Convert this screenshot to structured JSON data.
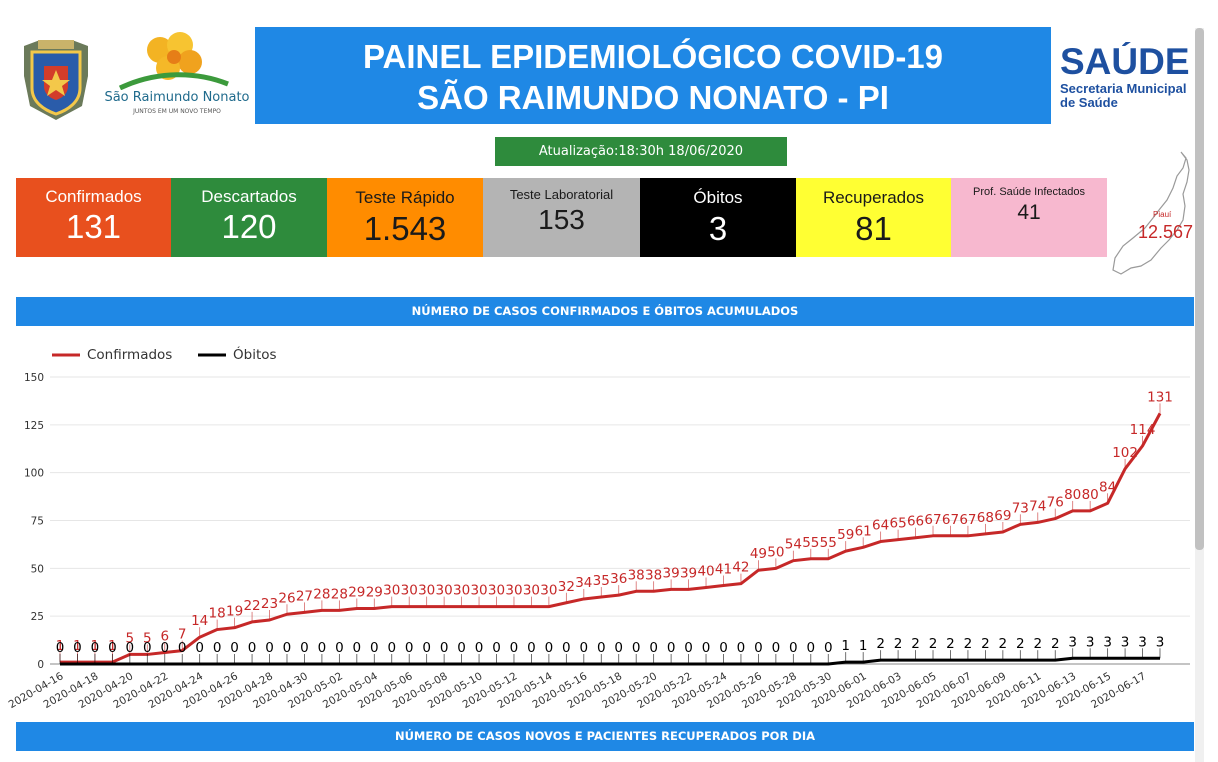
{
  "header": {
    "title_line1": "PAINEL EPIDEMIOLÓGICO COVID-19",
    "title_line2": "SÃO RAIMUNDO NONATO - PI",
    "city_logo_name": "São Raimundo Nonato",
    "city_logo_tagline": "JUNTOS EM UM NOVO TEMPO",
    "saude_title": "SAÚDE",
    "saude_sub1": "Secretaria Municipal",
    "saude_sub2": "de Saúde"
  },
  "update": "Atualização:18:30h 18/06/2020",
  "cards": [
    {
      "label": "Confirmados",
      "value": "131",
      "bg": "#e8501e",
      "fg": "#ffffff"
    },
    {
      "label": "Descartados",
      "value": "120",
      "bg": "#2e8b3c",
      "fg": "#ffffff"
    },
    {
      "label": "Teste Rápido",
      "value": "1.543",
      "bg": "#ff8c00",
      "fg": "#1a1a1a"
    },
    {
      "label": "Teste Laboratorial",
      "value": "153",
      "bg": "#b4b4b4",
      "fg": "#1a1a1a"
    },
    {
      "label": "Óbitos",
      "value": "3",
      "bg": "#000000",
      "fg": "#ffffff"
    },
    {
      "label": "Recuperados",
      "value": "81",
      "bg": "#ffff33",
      "fg": "#1a1a1a"
    },
    {
      "label": "Prof. Saúde Infectados",
      "value": "41",
      "bg": "#f7b8cf",
      "fg": "#1a1a1a"
    }
  ],
  "map": {
    "label": "Piauí",
    "value": "12.567"
  },
  "section1_title": "NÚMERO DE CASOS CONFIRMADOS E ÓBITOS ACUMULADOS",
  "section2_title": "NÚMERO DE CASOS NOVOS E PACIENTES RECUPERADOS POR DIA",
  "colors": {
    "confirmados": "#c62828",
    "obitos": "#000000",
    "section": "#1f88e5"
  },
  "chart_data": {
    "type": "line",
    "ylim": [
      0,
      150
    ],
    "yticks": [
      0,
      25,
      50,
      75,
      100,
      125,
      150
    ],
    "x_tick_labels": [
      "2020-04-16",
      "2020-04-18",
      "2020-04-20",
      "2020-04-22",
      "2020-04-24",
      "2020-04-26",
      "2020-04-28",
      "2020-04-30",
      "2020-05-02",
      "2020-05-04",
      "2020-05-06",
      "2020-05-08",
      "2020-05-10",
      "2020-05-12",
      "2020-05-14",
      "2020-05-16",
      "2020-05-18",
      "2020-05-20",
      "2020-05-22",
      "2020-05-24",
      "2020-05-26",
      "2020-05-28",
      "2020-05-30",
      "2020-06-01",
      "2020-06-03",
      "2020-06-05",
      "2020-06-07",
      "2020-06-09",
      "2020-06-11",
      "2020-06-13",
      "2020-06-15",
      "2020-06-17"
    ],
    "legend_position": "top-left",
    "grid": true,
    "series": [
      {
        "name": "Confirmados",
        "values": [
          1,
          1,
          1,
          1,
          5,
          5,
          6,
          7,
          14,
          18,
          19,
          22,
          23,
          26,
          27,
          28,
          28,
          29,
          29,
          30,
          30,
          30,
          30,
          30,
          30,
          30,
          30,
          30,
          30,
          32,
          34,
          35,
          36,
          38,
          38,
          39,
          39,
          40,
          41,
          42,
          49,
          50,
          54,
          55,
          55,
          59,
          61,
          64,
          65,
          66,
          67,
          67,
          67,
          68,
          69,
          73,
          74,
          76,
          80,
          80,
          84,
          102,
          114,
          131
        ]
      },
      {
        "name": "Óbitos",
        "values": [
          0,
          0,
          0,
          0,
          0,
          0,
          0,
          0,
          0,
          0,
          0,
          0,
          0,
          0,
          0,
          0,
          0,
          0,
          0,
          0,
          0,
          0,
          0,
          0,
          0,
          0,
          0,
          0,
          0,
          0,
          0,
          0,
          0,
          0,
          0,
          0,
          0,
          0,
          0,
          0,
          0,
          0,
          0,
          0,
          0,
          1,
          1,
          2,
          2,
          2,
          2,
          2,
          2,
          2,
          2,
          2,
          2,
          2,
          3,
          3,
          3,
          3,
          3,
          3
        ]
      }
    ]
  }
}
